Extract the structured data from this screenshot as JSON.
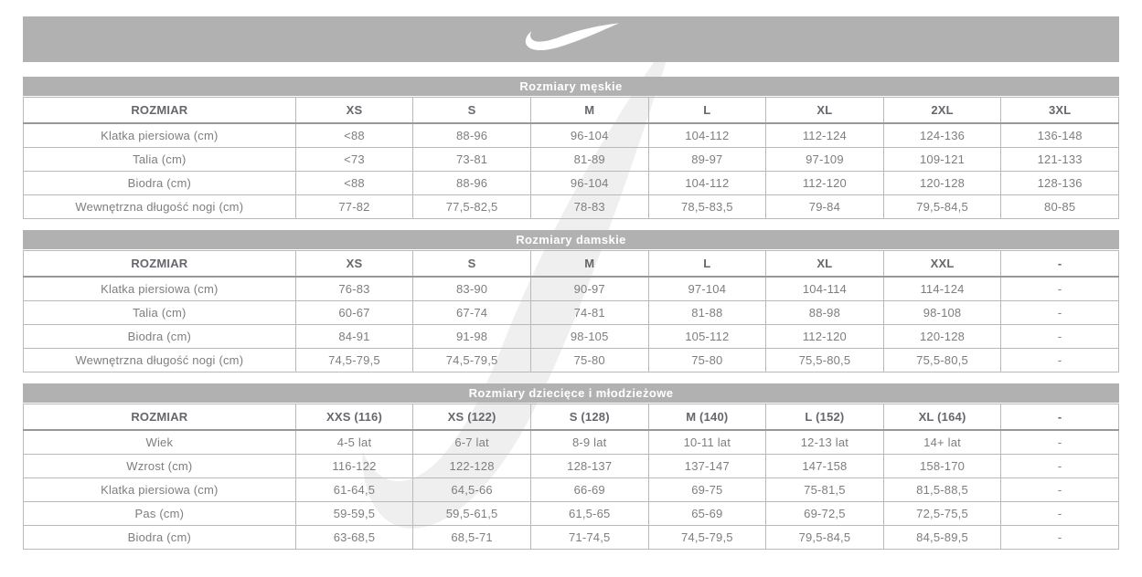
{
  "banner": {
    "logo_icon": "nike-swoosh-icon",
    "background": "#b1b1b1"
  },
  "watermark": {
    "icon": "nike-swoosh-watermark",
    "color": "#efefef"
  },
  "colors": {
    "section_header_bg": "#b1b1b1",
    "section_header_text": "#ffffff",
    "column_header_text": "#65676c",
    "cell_text": "#7e7e7e",
    "grid_border": "#b9b9b9"
  },
  "tables": [
    {
      "id": "men",
      "title": "Rozmiary męskie",
      "columns": [
        "ROZMIAR",
        "XS",
        "S",
        "M",
        "L",
        "XL",
        "2XL",
        "3XL"
      ],
      "rows": [
        [
          "Klatka piersiowa (cm)",
          "<88",
          "88-96",
          "96-104",
          "104-112",
          "112-124",
          "124-136",
          "136-148"
        ],
        [
          "Talia (cm)",
          "<73",
          "73-81",
          "81-89",
          "89-97",
          "97-109",
          "109-121",
          "121-133"
        ],
        [
          "Biodra (cm)",
          "<88",
          "88-96",
          "96-104",
          "104-112",
          "112-120",
          "120-128",
          "128-136"
        ],
        [
          "Wewnętrzna długość nogi (cm)",
          "77-82",
          "77,5-82,5",
          "78-83",
          "78,5-83,5",
          "79-84",
          "79,5-84,5",
          "80-85"
        ]
      ]
    },
    {
      "id": "women",
      "title": "Rozmiary damskie",
      "columns": [
        "ROZMIAR",
        "XS",
        "S",
        "M",
        "L",
        "XL",
        "XXL",
        "-"
      ],
      "rows": [
        [
          "Klatka piersiowa (cm)",
          "76-83",
          "83-90",
          "90-97",
          "97-104",
          "104-114",
          "114-124",
          "-"
        ],
        [
          "Talia (cm)",
          "60-67",
          "67-74",
          "74-81",
          "81-88",
          "88-98",
          "98-108",
          "-"
        ],
        [
          "Biodra (cm)",
          "84-91",
          "91-98",
          "98-105",
          "105-112",
          "112-120",
          "120-128",
          "-"
        ],
        [
          "Wewnętrzna długość nogi (cm)",
          "74,5-79,5",
          "74,5-79,5",
          "75-80",
          "75-80",
          "75,5-80,5",
          "75,5-80,5",
          "-"
        ]
      ]
    },
    {
      "id": "kids",
      "title": "Rozmiary dziecięce i młodzieżowe",
      "columns": [
        "ROZMIAR",
        "XXS (116)",
        "XS (122)",
        "S (128)",
        "M (140)",
        "L (152)",
        "XL (164)",
        "-"
      ],
      "rows": [
        [
          "Wiek",
          "4-5 lat",
          "6-7 lat",
          "8-9 lat",
          "10-11 lat",
          "12-13 lat",
          "14+ lat",
          "-"
        ],
        [
          "Wzrost (cm)",
          "116-122",
          "122-128",
          "128-137",
          "137-147",
          "147-158",
          "158-170",
          "-"
        ],
        [
          "Klatka piersiowa (cm)",
          "61-64,5",
          "64,5-66",
          "66-69",
          "69-75",
          "75-81,5",
          "81,5-88,5",
          "-"
        ],
        [
          "Pas (cm)",
          "59-59,5",
          "59,5-61,5",
          "61,5-65",
          "65-69",
          "69-72,5",
          "72,5-75,5",
          "-"
        ],
        [
          "Biodra (cm)",
          "63-68,5",
          "68,5-71",
          "71-74,5",
          "74,5-79,5",
          "79,5-84,5",
          "84,5-89,5",
          "-"
        ]
      ]
    }
  ]
}
